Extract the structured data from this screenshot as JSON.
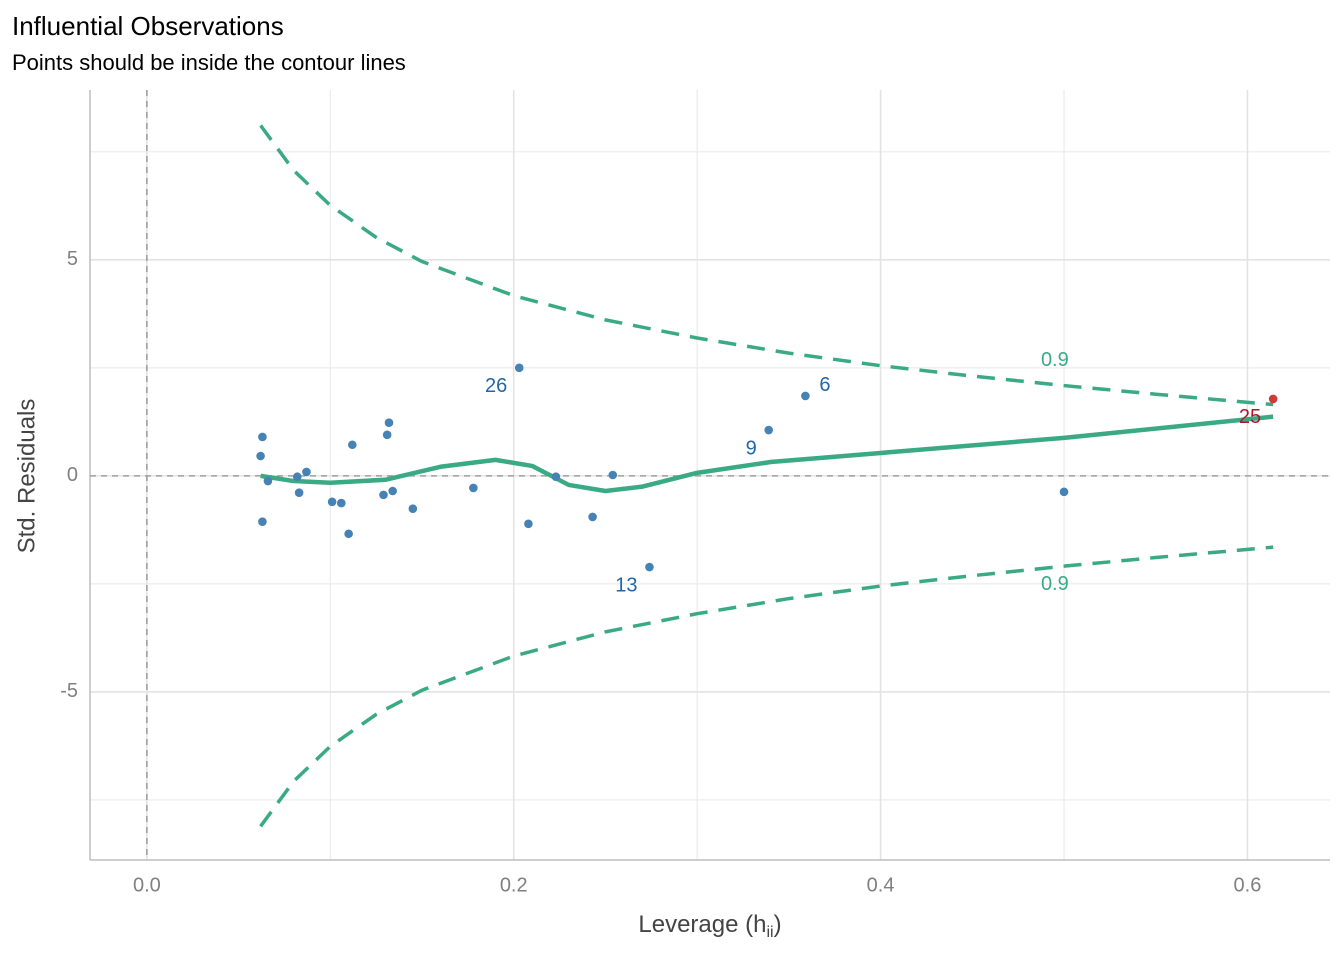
{
  "chart_data": {
    "type": "scatter",
    "title": "Influential Observations",
    "subtitle": "Points should be inside the contour lines",
    "xlabel": "Leverage (h",
    "xlabel_sub": "ii",
    "xlabel_end": ")",
    "ylabel": "Std. Residuals",
    "xlim": [
      -0.031,
      0.645
    ],
    "ylim": [
      -8.89,
      8.93
    ],
    "xticks": [
      {
        "value": 0,
        "label": "0.0"
      },
      0.2,
      0.4,
      0.6
    ],
    "yticks": [
      -5,
      0,
      5
    ],
    "x_minor_ticks": [
      0.1,
      0.3,
      0.5
    ],
    "y_minor_ticks": [
      -7.5,
      -2.5,
      2.5,
      7.5
    ],
    "grid": true,
    "reference_lines": {
      "x": 0,
      "y": 0
    },
    "x": [
      0.063,
      0.062,
      0.063,
      0.066,
      0.082,
      0.083,
      0.087,
      0.101,
      0.106,
      0.11,
      0.112,
      0.129,
      0.131,
      0.132,
      0.134,
      0.145,
      0.178,
      0.203,
      0.208,
      0.223,
      0.243,
      0.254,
      0.274,
      0.339,
      0.359,
      0.5,
      0.614
    ],
    "values": [
      0.9,
      0.46,
      -1.06,
      -0.12,
      -0.02,
      -0.39,
      0.09,
      -0.6,
      -0.63,
      -1.34,
      0.72,
      -0.44,
      0.95,
      1.23,
      -0.35,
      -0.76,
      -0.28,
      2.5,
      -1.11,
      -0.02,
      -0.95,
      0.02,
      -2.11,
      1.06,
      1.85,
      -0.37,
      1.78
    ],
    "point_labels": [
      null,
      null,
      null,
      null,
      null,
      null,
      null,
      null,
      null,
      null,
      null,
      null,
      null,
      null,
      null,
      null,
      null,
      "26",
      null,
      null,
      null,
      null,
      "13",
      "9",
      "6",
      null,
      "25"
    ],
    "point_colors": [
      "#4682b4",
      "#4682b4",
      "#4682b4",
      "#4682b4",
      "#4682b4",
      "#4682b4",
      "#4682b4",
      "#4682b4",
      "#4682b4",
      "#4682b4",
      "#4682b4",
      "#4682b4",
      "#4682b4",
      "#4682b4",
      "#4682b4",
      "#4682b4",
      "#4682b4",
      "#4682b4",
      "#4682b4",
      "#4682b4",
      "#4682b4",
      "#4682b4",
      "#4682b4",
      "#4682b4",
      "#4682b4",
      "#4682b4",
      "#cd3b36"
    ],
    "label_colors": [
      "#2166ac",
      "#2166ac",
      "#2166ac",
      "#2166ac",
      "#2166ac",
      "#2166ac",
      "#2166ac",
      "#2166ac",
      "#2166ac",
      "#2166ac",
      "#2166ac",
      "#2166ac",
      "#2166ac",
      "#2166ac",
      "#2166ac",
      "#2166ac",
      "#2166ac",
      "#2166ac",
      "#2166ac",
      "#2166ac",
      "#2166ac",
      "#2166ac",
      "#2166ac",
      "#2166ac",
      "#2166ac",
      "#2166ac",
      "#b2182b"
    ],
    "contour_color": "#3aaa85",
    "contours": [
      {
        "x": [
          0.062,
          0.08,
          0.1,
          0.125,
          0.15,
          0.2,
          0.25,
          0.3,
          0.35,
          0.4,
          0.45,
          0.5,
          0.55,
          0.614
        ],
        "values": [
          8.11,
          7.07,
          6.26,
          5.52,
          4.96,
          4.17,
          3.61,
          3.19,
          2.84,
          2.55,
          2.31,
          2.09,
          1.89,
          1.65
        ]
      },
      {
        "x": [
          0.062,
          0.08,
          0.1,
          0.125,
          0.15,
          0.2,
          0.25,
          0.3,
          0.35,
          0.4,
          0.45,
          0.5,
          0.55,
          0.614
        ],
        "values": [
          -8.11,
          -7.07,
          -6.26,
          -5.52,
          -4.96,
          -4.17,
          -3.61,
          -3.19,
          -2.84,
          -2.55,
          -2.31,
          -2.09,
          -1.89,
          -1.65
        ]
      }
    ],
    "contour_labels": [
      {
        "text": "0.9",
        "x": 0.495,
        "y": 2.66
      },
      {
        "text": "0.9",
        "x": 0.495,
        "y": -2.52
      }
    ],
    "smooth": {
      "x": [
        0.062,
        0.08,
        0.1,
        0.13,
        0.16,
        0.19,
        0.21,
        0.23,
        0.25,
        0.27,
        0.3,
        0.34,
        0.4,
        0.5,
        0.614
      ],
      "values": [
        0.0,
        -0.12,
        -0.16,
        -0.09,
        0.21,
        0.37,
        0.23,
        -0.21,
        -0.35,
        -0.25,
        0.07,
        0.32,
        0.53,
        0.88,
        1.37
      ]
    }
  }
}
